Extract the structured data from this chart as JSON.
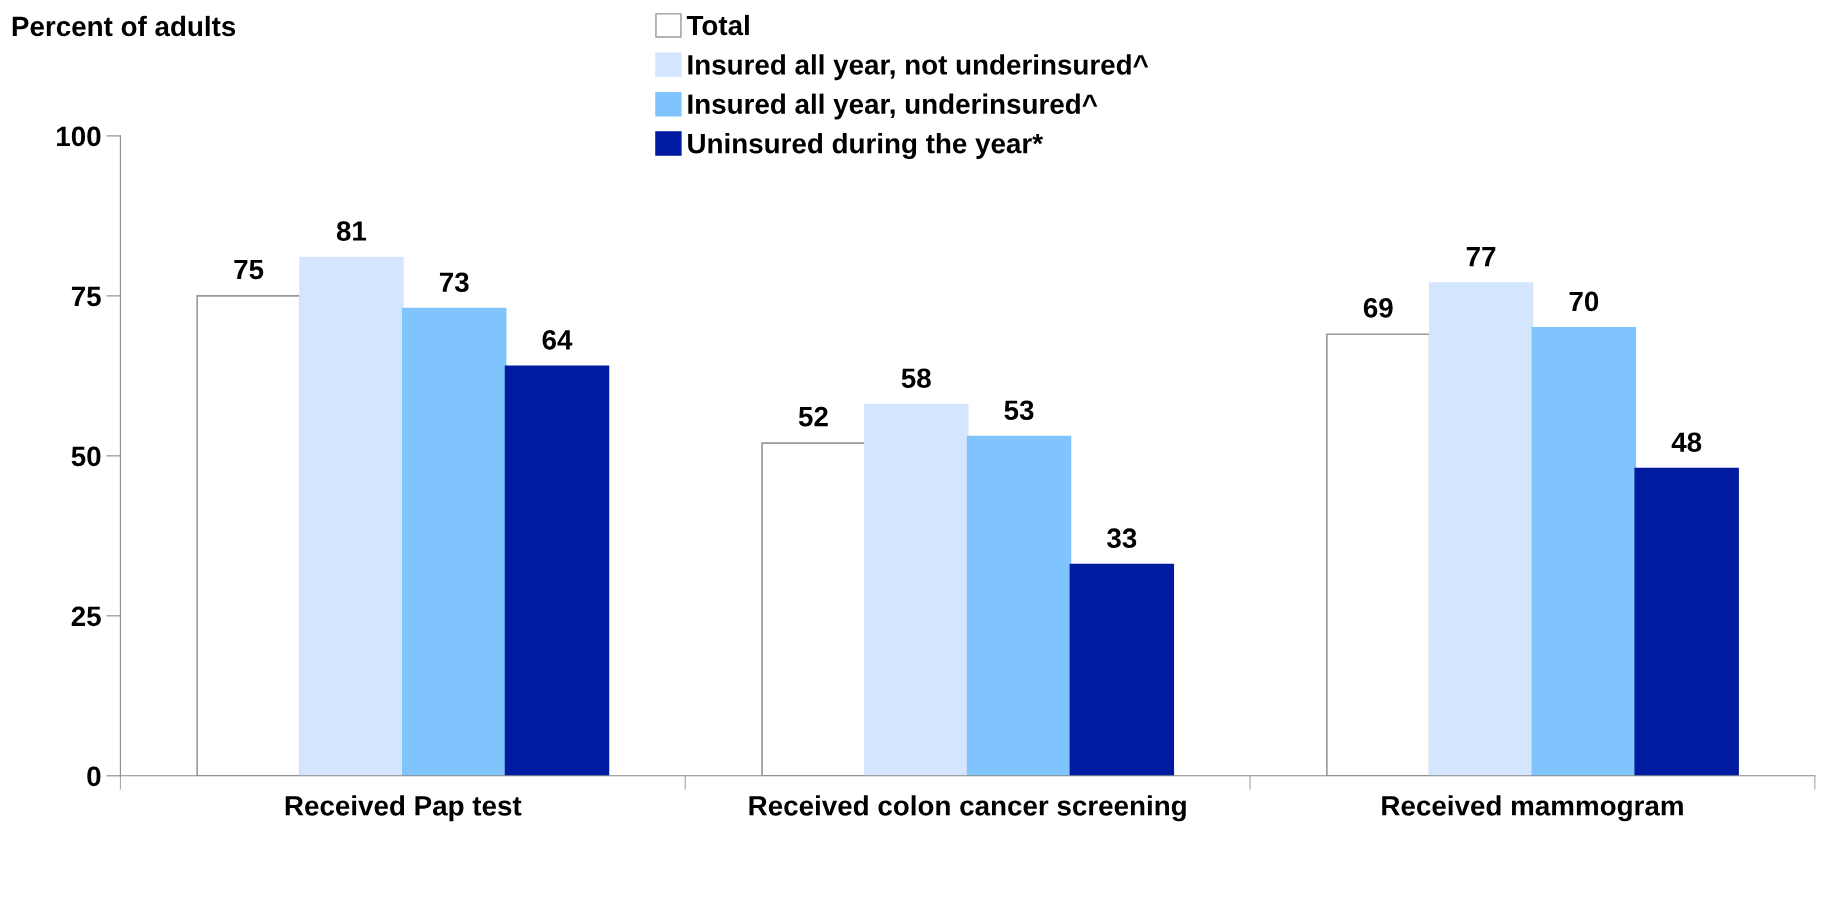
{
  "chart_data": {
    "type": "bar",
    "ylabel": "Percent of adults",
    "categories": [
      "Received Pap test",
      "Received colon cancer screening",
      "Received mammogram"
    ],
    "series": [
      {
        "name": "Total",
        "color": "#ffffff",
        "values": [
          75,
          52,
          69
        ]
      },
      {
        "name": "Insured all year, not underinsured^",
        "color": "#d4e6fd",
        "values": [
          81,
          58,
          77
        ]
      },
      {
        "name": "Insured all year, underinsured^",
        "color": "#80c4fe",
        "values": [
          73,
          53,
          70
        ]
      },
      {
        "name": "Uninsured during the year*",
        "color": "#001aa0",
        "values": [
          64,
          33,
          48
        ]
      }
    ],
    "ylim": [
      0,
      100
    ],
    "yticks": [
      0,
      25,
      50,
      75,
      100
    ],
    "grid": false,
    "legend": "top",
    "data_labels": true
  }
}
